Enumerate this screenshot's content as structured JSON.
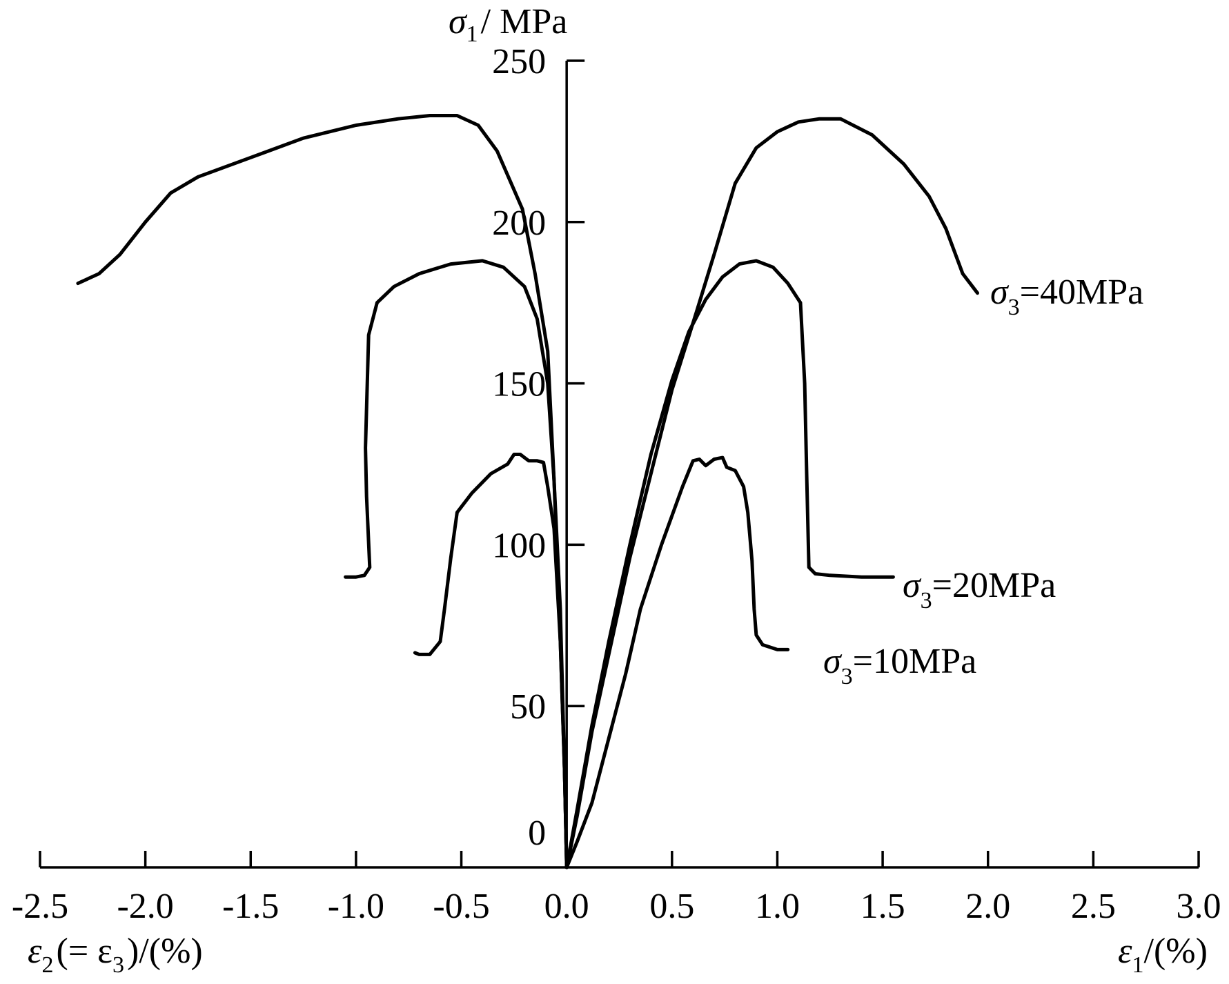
{
  "chart_data": {
    "type": "line",
    "x_right_label": {
      "sym": "ε",
      "sub": "1",
      "rest": "/(%)"
    },
    "x_left_label": {
      "sym": "ε",
      "sub": "2",
      "mid": "(= ε",
      "sub2": "3",
      "rest": ")/(%)"
    },
    "y_label": {
      "sym": "σ",
      "sub": "1",
      "rest": "/ MPa"
    },
    "xlim": [
      -2.5,
      3.0
    ],
    "ylim": [
      0,
      250
    ],
    "x_ticks": [
      -2.5,
      -2.0,
      -1.5,
      -1.0,
      -0.5,
      0.0,
      0.5,
      1.0,
      1.5,
      2.0,
      2.5,
      3.0
    ],
    "x_tick_labels": [
      "-2.5",
      "-2.0",
      "-1.5",
      "-1.0",
      "-0.5",
      "0.0",
      "0.5",
      "1.0",
      "1.5",
      "2.0",
      "2.5",
      "3.0"
    ],
    "y_ticks": [
      0,
      50,
      100,
      150,
      200,
      250
    ],
    "y_tick_labels": [
      "0",
      "50",
      "100",
      "150",
      "200",
      "250"
    ],
    "grid": false,
    "series": [
      {
        "name": "σ3=40MPa",
        "label": {
          "sym": "σ",
          "sub": "3",
          "rest": "=40MPa"
        },
        "axial": [
          [
            0,
            0
          ],
          [
            0.05,
            16
          ],
          [
            0.12,
            42
          ],
          [
            0.2,
            66
          ],
          [
            0.3,
            96
          ],
          [
            0.4,
            122
          ],
          [
            0.5,
            148
          ],
          [
            0.62,
            173
          ],
          [
            0.7,
            190
          ],
          [
            0.8,
            212
          ],
          [
            0.9,
            223
          ],
          [
            1.0,
            228
          ],
          [
            1.1,
            231
          ],
          [
            1.2,
            232
          ],
          [
            1.3,
            232
          ],
          [
            1.45,
            227
          ],
          [
            1.6,
            218
          ],
          [
            1.72,
            208
          ],
          [
            1.8,
            198
          ],
          [
            1.88,
            184
          ],
          [
            1.95,
            178
          ]
        ],
        "lateral": [
          [
            0,
            0
          ],
          [
            -0.01,
            30
          ],
          [
            -0.03,
            80
          ],
          [
            -0.06,
            120
          ],
          [
            -0.09,
            160
          ],
          [
            -0.15,
            184
          ],
          [
            -0.21,
            204
          ],
          [
            -0.33,
            222
          ],
          [
            -0.42,
            230
          ],
          [
            -0.52,
            233
          ],
          [
            -0.65,
            233
          ],
          [
            -0.8,
            232
          ],
          [
            -1.0,
            230
          ],
          [
            -1.25,
            226
          ],
          [
            -1.5,
            220
          ],
          [
            -1.75,
            214
          ],
          [
            -1.88,
            209
          ],
          [
            -2.0,
            200
          ],
          [
            -2.12,
            190
          ],
          [
            -2.22,
            184
          ],
          [
            -2.32,
            181
          ]
        ]
      },
      {
        "name": "σ3=20MPa",
        "label": {
          "sym": "σ",
          "sub": "3",
          "rest": "=20MPa"
        },
        "axial": [
          [
            0,
            0
          ],
          [
            0.05,
            18
          ],
          [
            0.12,
            44
          ],
          [
            0.2,
            70
          ],
          [
            0.3,
            100
          ],
          [
            0.4,
            128
          ],
          [
            0.5,
            151
          ],
          [
            0.58,
            166
          ],
          [
            0.66,
            176
          ],
          [
            0.74,
            183
          ],
          [
            0.82,
            187
          ],
          [
            0.9,
            188
          ],
          [
            0.98,
            186
          ],
          [
            1.05,
            181
          ],
          [
            1.11,
            175
          ],
          [
            1.13,
            150
          ],
          [
            1.14,
            120
          ],
          [
            1.15,
            93
          ],
          [
            1.18,
            91
          ],
          [
            1.25,
            90.5
          ],
          [
            1.4,
            90
          ],
          [
            1.55,
            90
          ]
        ],
        "lateral": [
          [
            0,
            0
          ],
          [
            -0.01,
            30
          ],
          [
            -0.03,
            70
          ],
          [
            -0.06,
            120
          ],
          [
            -0.09,
            150
          ],
          [
            -0.14,
            170
          ],
          [
            -0.2,
            180
          ],
          [
            -0.3,
            186
          ],
          [
            -0.4,
            188
          ],
          [
            -0.55,
            187
          ],
          [
            -0.7,
            184
          ],
          [
            -0.82,
            180
          ],
          [
            -0.9,
            175
          ],
          [
            -0.94,
            165
          ],
          [
            -0.955,
            130
          ],
          [
            -0.95,
            115
          ],
          [
            -0.935,
            93
          ],
          [
            -0.96,
            90.5
          ],
          [
            -1.0,
            90
          ],
          [
            -1.05,
            90
          ]
        ]
      },
      {
        "name": "σ3=10MPa",
        "label": {
          "sym": "σ",
          "sub": "3",
          "rest": "=10MPa"
        },
        "axial": [
          [
            0,
            0
          ],
          [
            0.05,
            8
          ],
          [
            0.12,
            20
          ],
          [
            0.2,
            40
          ],
          [
            0.28,
            60
          ],
          [
            0.35,
            80
          ],
          [
            0.45,
            100
          ],
          [
            0.55,
            118
          ],
          [
            0.6,
            126
          ],
          [
            0.63,
            126.5
          ],
          [
            0.66,
            124.5
          ],
          [
            0.7,
            126.5
          ],
          [
            0.74,
            127
          ],
          [
            0.76,
            124
          ],
          [
            0.8,
            123
          ],
          [
            0.84,
            118
          ],
          [
            0.86,
            110
          ],
          [
            0.88,
            95
          ],
          [
            0.89,
            80
          ],
          [
            0.9,
            72
          ],
          [
            0.93,
            69
          ],
          [
            1.0,
            67.5
          ],
          [
            1.05,
            67.5
          ]
        ],
        "lateral": [
          [
            0,
            0
          ],
          [
            -0.01,
            30
          ],
          [
            -0.03,
            70
          ],
          [
            -0.06,
            105
          ],
          [
            -0.09,
            118
          ],
          [
            -0.11,
            125.5
          ],
          [
            -0.14,
            126
          ],
          [
            -0.18,
            126
          ],
          [
            -0.22,
            128
          ],
          [
            -0.25,
            128
          ],
          [
            -0.28,
            125
          ],
          [
            -0.36,
            122
          ],
          [
            -0.45,
            116
          ],
          [
            -0.52,
            110
          ],
          [
            -0.55,
            96
          ],
          [
            -0.58,
            80
          ],
          [
            -0.6,
            70
          ],
          [
            -0.65,
            66
          ],
          [
            -0.7,
            66
          ],
          [
            -0.72,
            66.5
          ]
        ]
      }
    ]
  }
}
